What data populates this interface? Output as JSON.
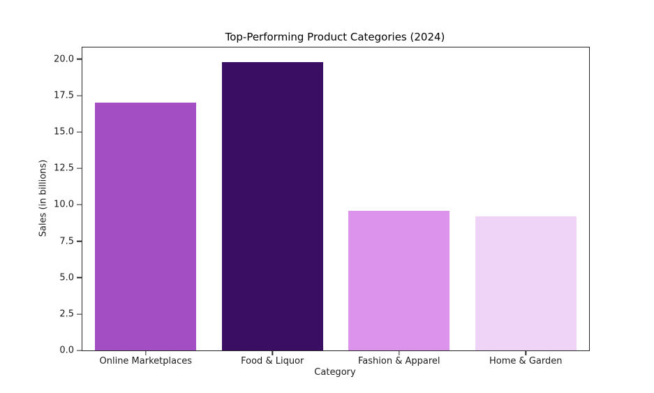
{
  "figure": {
    "background": "#ffffff",
    "text_color": "#1a1a1a",
    "spine_color": "#262626"
  },
  "chart_data": {
    "type": "bar",
    "title": "Top-Performing Product Categories (2024)",
    "xlabel": "Category",
    "ylabel": "Sales (in billions)",
    "categories": [
      "Online Marketplaces",
      "Food & Liquor",
      "Fashion & Apparel",
      "Home & Garden"
    ],
    "values": [
      17.0,
      19.8,
      9.6,
      9.2
    ],
    "bar_colors": [
      "#a44ec4",
      "#3a0f63",
      "#dc93ec",
      "#f0d4f7"
    ],
    "ylim": [
      0,
      20.8
    ],
    "yticks": [
      0.0,
      2.5,
      5.0,
      7.5,
      10.0,
      12.5,
      15.0,
      17.5,
      20.0
    ],
    "ytick_labels": [
      "0.0",
      "2.5",
      "5.0",
      "7.5",
      "10.0",
      "12.5",
      "15.0",
      "17.5",
      "20.0"
    ],
    "bar_width_fraction": 0.8,
    "grid": false,
    "legend": null
  }
}
